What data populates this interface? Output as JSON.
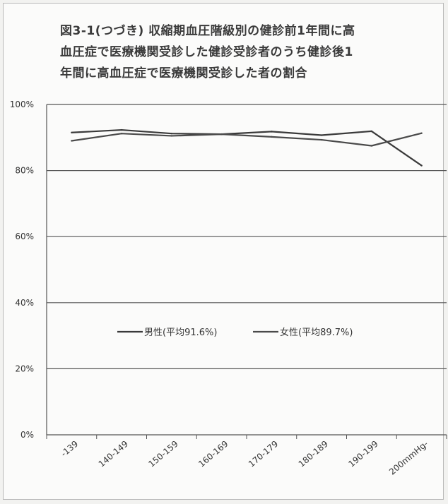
{
  "chart_data": {
    "type": "line",
    "title_lines": [
      "図3-1(つづき) 収縮期血圧階級別の健診前1年間に高",
      "血圧症で医療機関受診した健診受診者のうち健診後1",
      "年間に高血圧症で医療機関受診した者の割合"
    ],
    "categories": [
      "-139",
      "140-149",
      "150-159",
      "160-169",
      "170-179",
      "180-189",
      "190-199",
      "200mmHg-"
    ],
    "yticks": [
      "0%",
      "20%",
      "40%",
      "60%",
      "80%",
      "100%"
    ],
    "ylim": [
      0,
      100
    ],
    "grid": true,
    "legend_placement": "center",
    "series": [
      {
        "name": "男性(平均91.6%)",
        "values": [
          91.5,
          92.3,
          91.2,
          91.0,
          91.8,
          90.7,
          91.9,
          81.5
        ],
        "color": "#3a3a3a"
      },
      {
        "name": "女性(平均89.7%)",
        "values": [
          89.0,
          91.2,
          90.5,
          91.0,
          90.2,
          89.3,
          87.5,
          91.3
        ],
        "color": "#4a4a4a"
      }
    ]
  }
}
